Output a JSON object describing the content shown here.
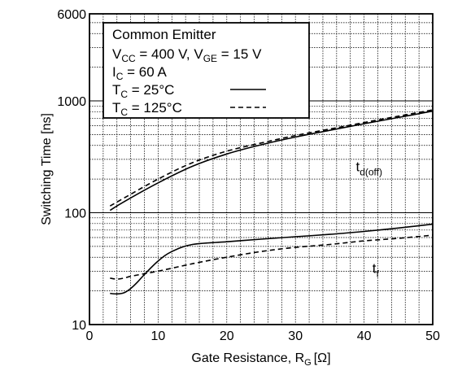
{
  "chart_data": {
    "type": "line",
    "title": "",
    "xlabel": "Gate Resistance, R",
    "xlabel_sub": "G",
    "xlabel_unit": "[Ω]",
    "ylabel": "Switching Time [ns]",
    "xlim": [
      0,
      50
    ],
    "ylim": [
      10,
      6000
    ],
    "yscale": "log",
    "x_ticks": [
      "0",
      "10",
      "20",
      "30",
      "40",
      "50"
    ],
    "y_ticks": [
      "10",
      "100",
      "1000",
      "6000"
    ],
    "grid": true,
    "legend": {
      "placement": "top-left",
      "lines": [
        {
          "main": "Common Emitter"
        },
        {
          "parts": [
            [
              "V",
              ""
            ],
            [
              "CC",
              "sub"
            ],
            [
              " = 400 V, V",
              ""
            ],
            [
              "GE",
              "sub"
            ],
            [
              " = 15 V",
              ""
            ]
          ]
        },
        {
          "parts": [
            [
              "I",
              ""
            ],
            [
              "C",
              "sub"
            ],
            [
              " = 60 A",
              ""
            ]
          ]
        },
        {
          "parts": [
            [
              "T",
              ""
            ],
            [
              "C",
              "sub"
            ],
            [
              " = 25°C",
              ""
            ]
          ],
          "style": "solid"
        },
        {
          "parts": [
            [
              "T",
              ""
            ],
            [
              "C",
              "sub"
            ],
            [
              " = 125°C",
              ""
            ]
          ],
          "style": "dashed"
        }
      ]
    },
    "annotations": [
      {
        "text": "t",
        "sub": "d(off)",
        "x": 38.8,
        "y": 235
      },
      {
        "text": "t",
        "sub": "f",
        "x": 41.2,
        "y": 29
      }
    ],
    "series": [
      {
        "label": "td(off), TC = 25°C",
        "style": "solid",
        "x": [
          3,
          5,
          10,
          15,
          20,
          25,
          30,
          35,
          40,
          45,
          50
        ],
        "y": [
          105,
          125,
          185,
          260,
          335,
          405,
          475,
          545,
          625,
          710,
          810
        ]
      },
      {
        "label": "td(off), TC = 125°C",
        "style": "dashed",
        "x": [
          3,
          5,
          10,
          15,
          20,
          25,
          30,
          35,
          40,
          45,
          50
        ],
        "y": [
          115,
          135,
          200,
          280,
          355,
          420,
          490,
          560,
          640,
          730,
          830
        ]
      },
      {
        "label": "tf, TC = 25°C",
        "style": "solid",
        "x": [
          3,
          4,
          5,
          6,
          7,
          8,
          10,
          12,
          15,
          20,
          25,
          30,
          35,
          40,
          45,
          50
        ],
        "y": [
          19,
          18.8,
          19.2,
          21,
          24,
          28,
          37,
          45,
          52,
          55,
          58,
          61,
          64,
          68,
          73,
          79
        ]
      },
      {
        "label": "tf, TC = 125°C",
        "style": "dashed",
        "x": [
          3,
          4,
          5,
          6,
          8,
          10,
          15,
          20,
          25,
          30,
          35,
          40,
          45,
          50
        ],
        "y": [
          26,
          25.5,
          26,
          27,
          28.5,
          30,
          35,
          40,
          45,
          49,
          52,
          56,
          59,
          63
        ]
      }
    ]
  }
}
